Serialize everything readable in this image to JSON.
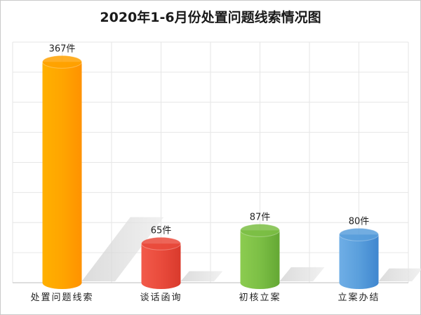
{
  "chart_data": {
    "type": "bar",
    "title": "2020年1-6月份处置问题线索情况图",
    "categories": [
      "处置问题线索",
      "谈话函询",
      "初核立案",
      "立案办结"
    ],
    "values": [
      367,
      65,
      87,
      80
    ],
    "value_labels": [
      "367件",
      "65件",
      "87件",
      "80件"
    ],
    "unit": "件",
    "ylim": [
      0,
      400
    ],
    "grid": true,
    "colors": [
      "#ffa200",
      "#ea4b3c",
      "#7cbf45",
      "#5a9fdc"
    ]
  }
}
